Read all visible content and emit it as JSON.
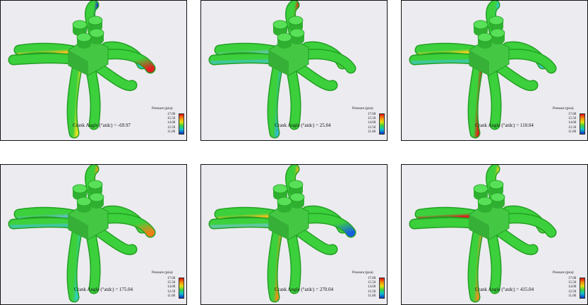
{
  "legend": {
    "title": "Pressure (psia)",
    "ticks": [
      "17.00",
      "15.50",
      "14.00",
      "12.50",
      "11.00"
    ]
  },
  "panels": [
    {
      "crank_label": "Crank Angle (°atdc) = -69.97",
      "colors": {
        "r1": "#2030d0",
        "r2": "#f0c020",
        "r3": "#f0e020",
        "r4": "#3cd03c",
        "r5": "#e02020",
        "r6": "#30c8c0"
      }
    },
    {
      "crank_label": "Crank Angle (°atdc) = 25.04",
      "colors": {
        "r1": "#e03018",
        "r2": "#60c8a0",
        "r3": "#30b8d8",
        "r4": "#40c8a0",
        "r5": "#3cd03c",
        "r6": "#50d040"
      }
    },
    {
      "crank_label": "Crank Angle (°atdc) = 110.04",
      "colors": {
        "r1": "#30c8d8",
        "r2": "#e8d020",
        "r3": "#e02018",
        "r4": "#40c8a0",
        "r5": "#3cd03c",
        "r6": "#40c8c0"
      }
    },
    {
      "crank_label": "Crank Angle (°atdc) = 175.04",
      "colors": {
        "r1": "#f0a010",
        "r2": "#60c0c0",
        "r3": "#30d0c8",
        "r4": "#40c8a0",
        "r5": "#f08018",
        "r6": "#50d040"
      }
    },
    {
      "crank_label": "Crank Angle (°atdc) = 270.04",
      "colors": {
        "r1": "#f0b818",
        "r2": "#e8c020",
        "r3": "#f09018",
        "r4": "#60c8a0",
        "r5": "#1860e0",
        "r6": "#40d040"
      }
    },
    {
      "crank_label": "Crank Angle (°atdc) = 415.04",
      "colors": {
        "r1": "#e0d020",
        "r2": "#e02020",
        "r3": "#f09020",
        "r4": "#3cd03c",
        "r5": "#3cd03c",
        "r6": "#50d040"
      }
    }
  ]
}
